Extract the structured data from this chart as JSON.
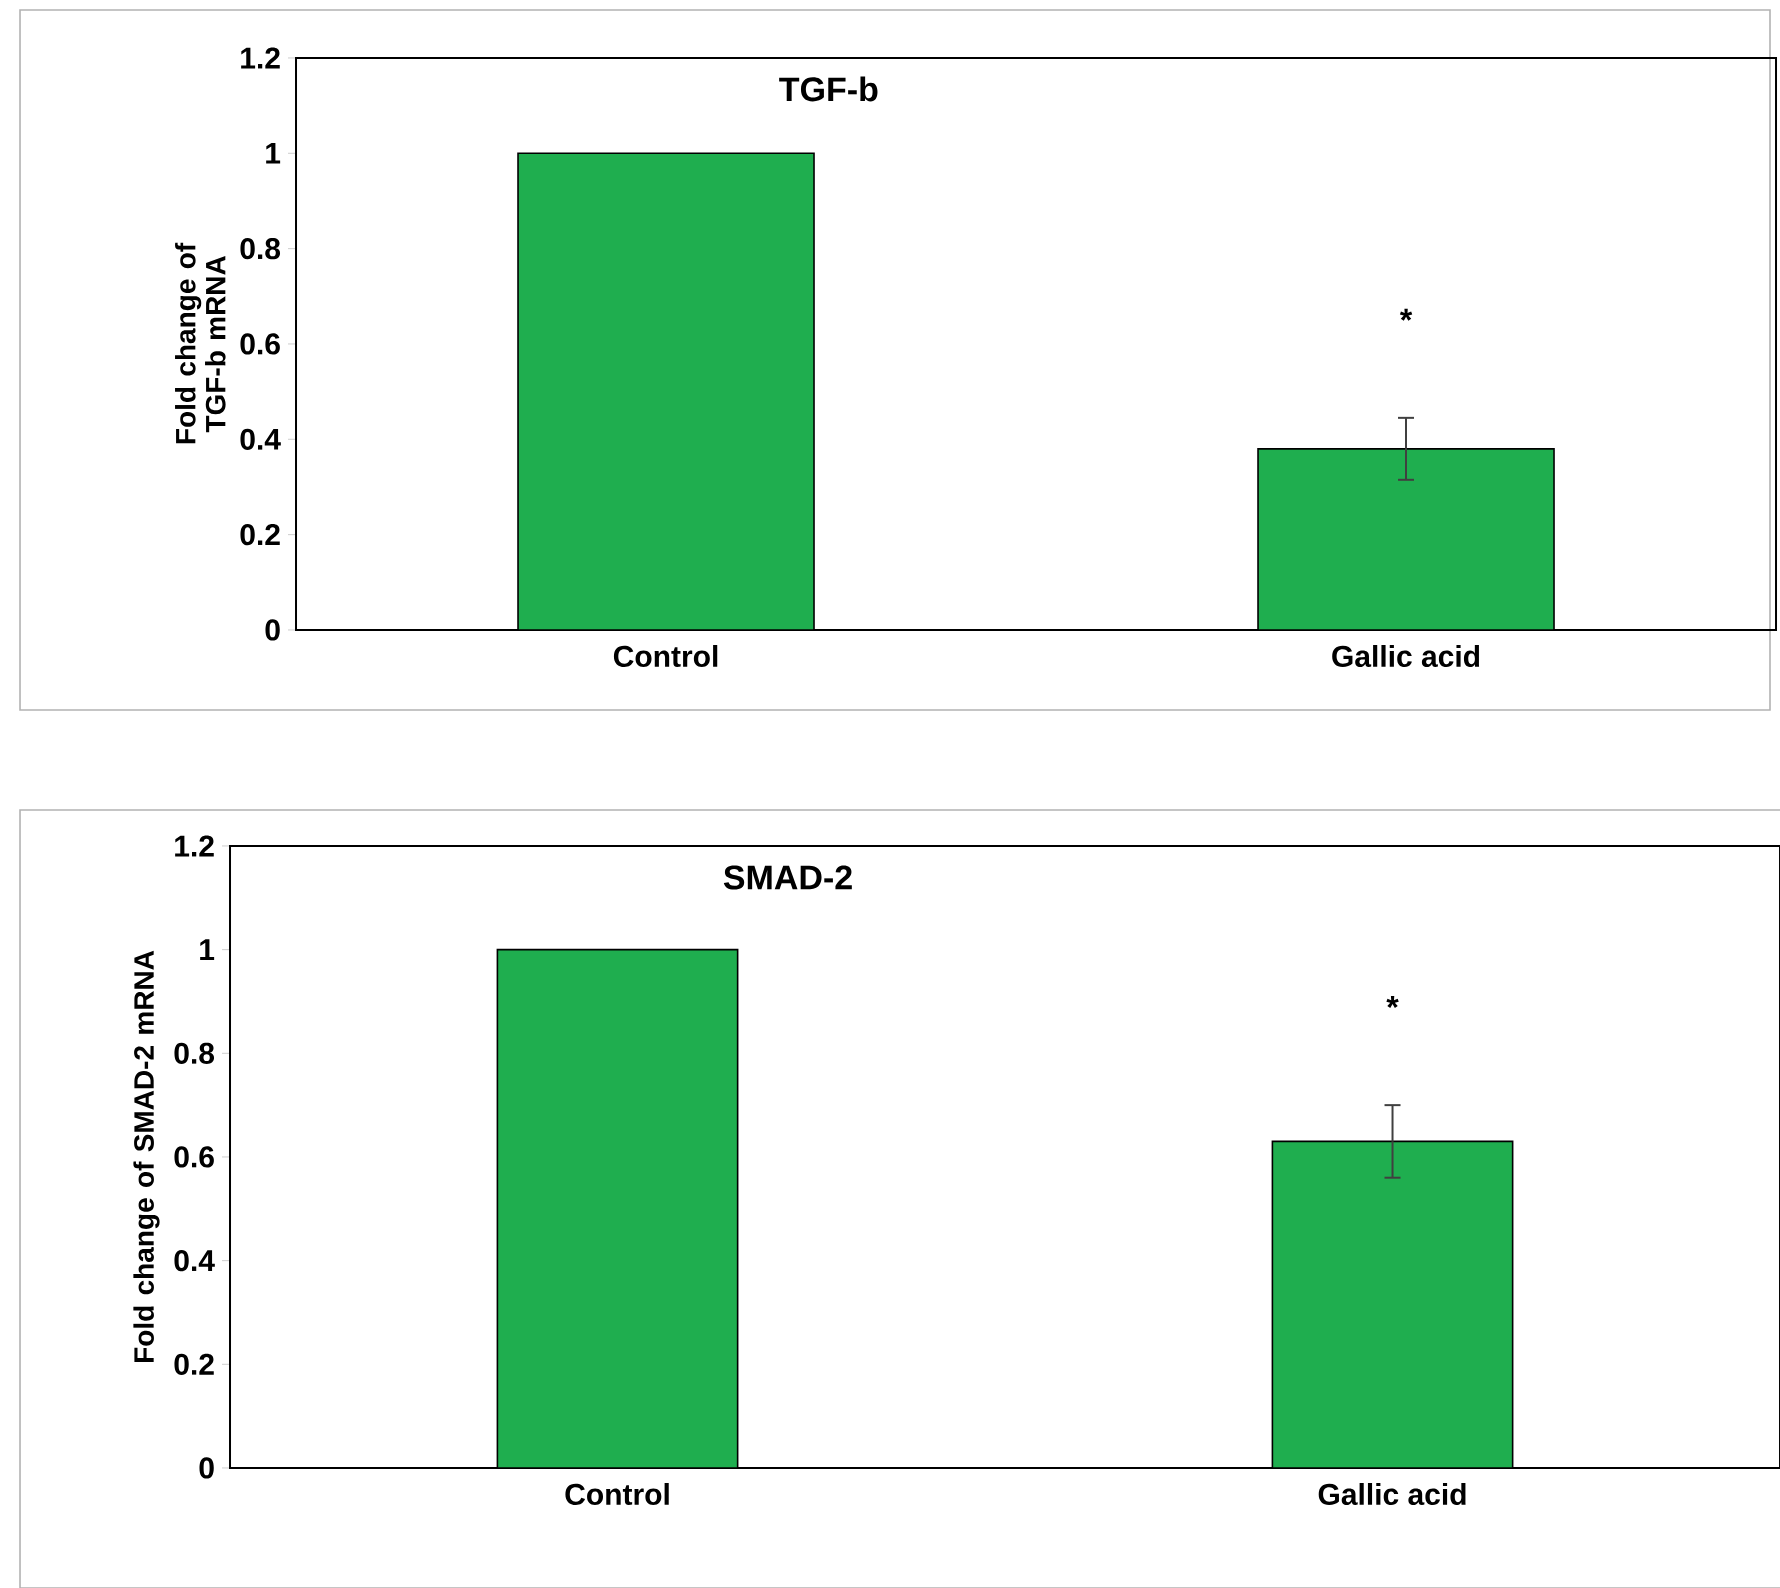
{
  "chart_data": [
    {
      "type": "bar",
      "title": "TGF-b",
      "ylabel": "Fold change of TGF-b mRNA",
      "categories": [
        "Control",
        "Gallic acid"
      ],
      "values": [
        1,
        0.38
      ],
      "errors": [
        null,
        0.065
      ],
      "color": "#1fae4f",
      "ylim": [
        0,
        1.2
      ],
      "yticks": [
        0,
        0.2,
        0.4,
        0.6,
        0.8,
        1,
        1.2
      ],
      "annotations": [
        "*"
      ]
    },
    {
      "type": "bar",
      "title": "SMAD-2",
      "ylabel": "Fold change of SMAD-2  mRNA",
      "categories": [
        "Control",
        "Gallic acid"
      ],
      "values": [
        1,
        0.63
      ],
      "errors": [
        null,
        0.07
      ],
      "color": "#1fae4f",
      "ylim": [
        0,
        1.2
      ],
      "yticks": [
        0,
        0.2,
        0.4,
        0.6,
        0.8,
        1,
        1.2
      ],
      "annotations": [
        "*"
      ]
    }
  ]
}
